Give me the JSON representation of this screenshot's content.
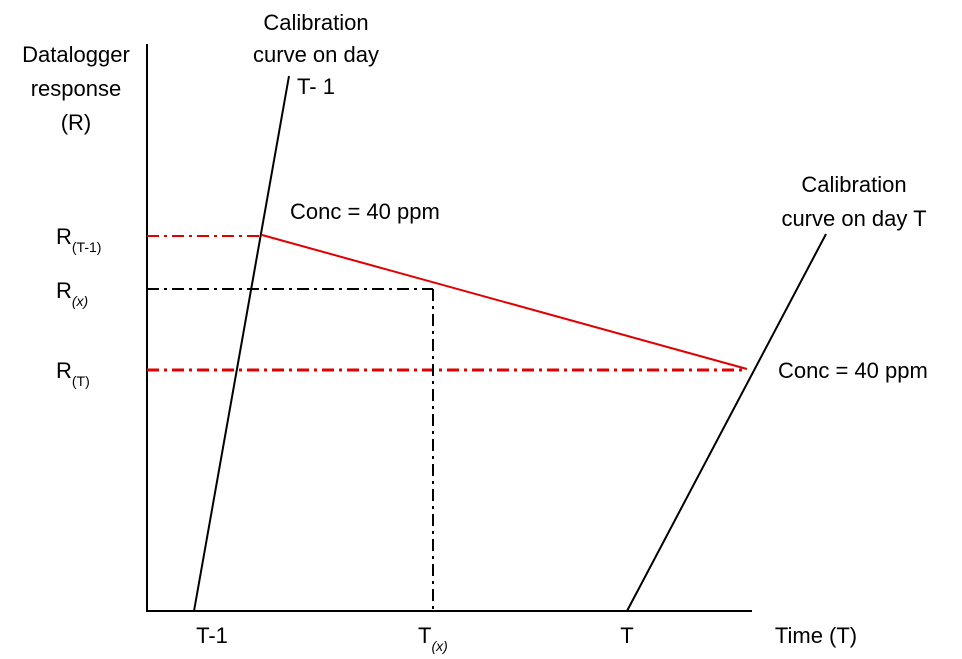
{
  "axes": {
    "y_title_lines": [
      "Datalogger",
      "response",
      "(R)"
    ],
    "x_title": "Time (T)",
    "x_ticks": [
      {
        "main": "T-1",
        "sub": ""
      },
      {
        "main": "T",
        "sub": "(x)"
      },
      {
        "main": "T",
        "sub": ""
      }
    ],
    "y_ticks": [
      {
        "main": "R",
        "sub": "(T-1)"
      },
      {
        "main": "R",
        "sub": "(x)"
      },
      {
        "main": "R",
        "sub": "(T)"
      }
    ]
  },
  "curves": {
    "day_t_minus_1": {
      "label_lines": [
        "Calibration",
        "curve on day",
        "T- 1"
      ]
    },
    "day_t": {
      "label_lines": [
        "Calibration",
        "curve on day T"
      ]
    }
  },
  "annotations": {
    "conc_upper": "Conc = 40 ppm",
    "conc_lower": "Conc = 40 ppm"
  },
  "colors": {
    "axis": "#000000",
    "calibration_line": "#000000",
    "interpolation_line": "#e00000",
    "reference_dashes": "#e00000",
    "interpolated_dashes": "#000000"
  }
}
